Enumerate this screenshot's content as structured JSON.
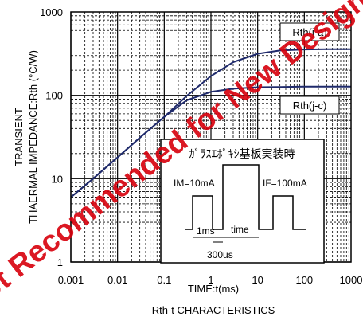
{
  "chart_data": {
    "type": "line",
    "title": "Rth-t CHARACTERISTICS",
    "xlabel": "TIME:t(ms)",
    "ylabel_line1": "TRANSIENT",
    "ylabel_line2": "THAERMAL IMPEDANCE:Rth (°C/W)",
    "xscale": "log",
    "yscale": "log",
    "xlim": [
      0.001,
      1000
    ],
    "ylim": [
      1,
      1000
    ],
    "x_ticks": [
      "0.001",
      "0.01",
      "0.1",
      "1",
      "10",
      "100",
      "1000"
    ],
    "y_ticks": [
      "1",
      "10",
      "100",
      "1000"
    ],
    "grid": true,
    "series": [
      {
        "name": "Rth(j-a)",
        "x": [
          0.001,
          0.003,
          0.01,
          0.03,
          0.1,
          0.3,
          1,
          3,
          10,
          30,
          100,
          300,
          1000
        ],
        "y": [
          6,
          10,
          18,
          31,
          55,
          98,
          170,
          250,
          315,
          345,
          355,
          358,
          358
        ]
      },
      {
        "name": "Rth(j-c)",
        "x": [
          0.001,
          0.003,
          0.01,
          0.03,
          0.1,
          0.3,
          1,
          3,
          10,
          30,
          100,
          300,
          1000
        ],
        "y": [
          6,
          10,
          18,
          31,
          55,
          87,
          110,
          120,
          125,
          126,
          127,
          127,
          127
        ]
      }
    ],
    "inset": {
      "title": "ｶﾞﾗｽｴﾎﾟｷｼ基板実装時",
      "im_label": "IM=10mA",
      "if_label": "IF=100mA",
      "ms_label": "1ms",
      "time_label": "time",
      "us_label": "300us"
    },
    "watermark": "Not Recommended for New Design"
  },
  "colors": {
    "curve": "#1f2a6b",
    "grid": "#000000",
    "watermark": "#d8000c"
  }
}
